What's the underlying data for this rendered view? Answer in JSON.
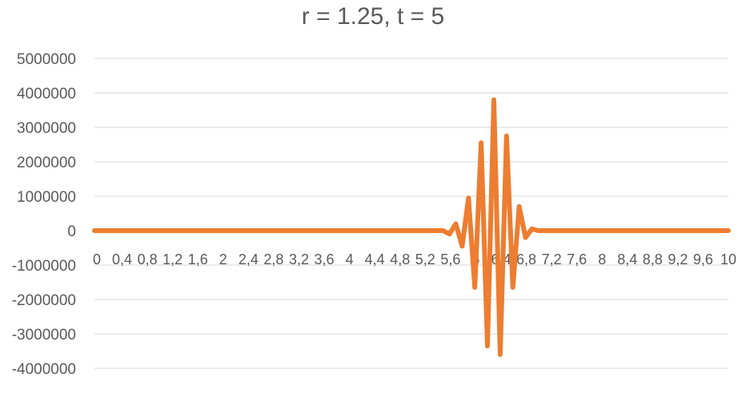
{
  "chart_data": {
    "type": "line",
    "title": "r = 1.25, t = 5",
    "xlabel": "",
    "ylabel": "",
    "ylim": [
      -4000000,
      5000000
    ],
    "yticks": [
      5000000,
      4000000,
      3000000,
      2000000,
      1000000,
      0,
      -1000000,
      -2000000,
      -3000000,
      -4000000
    ],
    "ytick_labels": [
      "5000000",
      "4000000",
      "3000000",
      "2000000",
      "1000000",
      "0",
      "-1000000",
      "-2000000",
      "-3000000",
      "-4000000"
    ],
    "xtick_labels": [
      "0",
      "0,4",
      "0,8",
      "1,2",
      "1,6",
      "2",
      "2,4",
      "2,8",
      "3,2",
      "3,6",
      "4",
      "4,4",
      "4,8",
      "5,2",
      "5,6",
      "6",
      "6,4",
      "6,8",
      "7,2",
      "7,6",
      "8",
      "8,4",
      "8,8",
      "9,2",
      "9,6",
      "10"
    ],
    "grid": "horizontal",
    "legend": "none",
    "series": [
      {
        "color": "#ED7D31",
        "x": [
          0,
          5.5,
          5.6,
          5.7,
          5.8,
          5.9,
          6.0,
          6.1,
          6.2,
          6.3,
          6.4,
          6.5,
          6.6,
          6.7,
          6.8,
          6.9,
          7.0,
          10
        ],
        "y": [
          0,
          0,
          -100000,
          200000,
          -450000,
          950000,
          -1650000,
          2550000,
          -3350000,
          3800000,
          -3600000,
          2750000,
          -1650000,
          700000,
          -200000,
          50000,
          0,
          0
        ]
      }
    ]
  }
}
